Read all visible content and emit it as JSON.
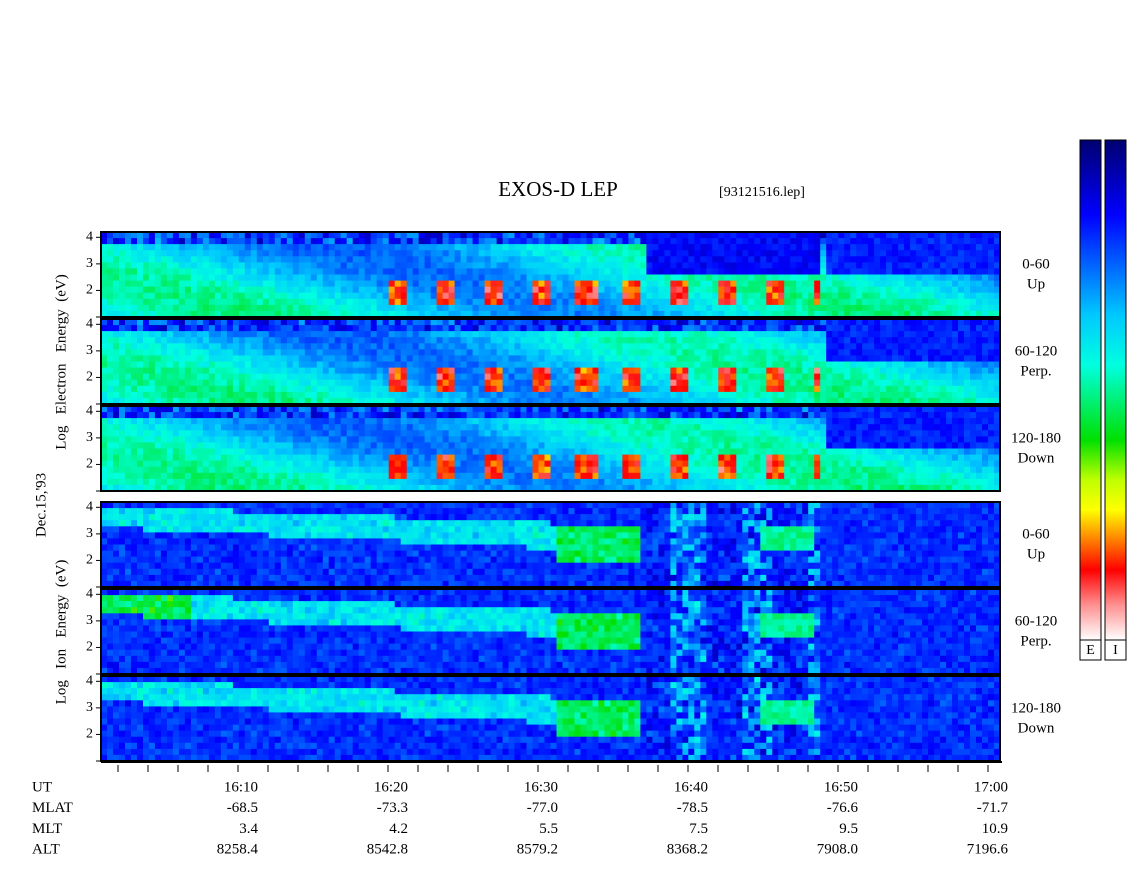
{
  "title": "EXOS-D LEP",
  "file": "[93121516.lep]",
  "date_label": "Dec.15,'93",
  "groups": [
    {
      "label": "Log   Electron   Energy  (eV)",
      "panels": [
        {
          "yticks": [
            2,
            3,
            4
          ],
          "ylim": [
            1,
            4.2
          ],
          "label": [
            "0-60",
            "Up"
          ]
        },
        {
          "yticks": [
            2,
            3,
            4
          ],
          "ylim": [
            1,
            4.2
          ],
          "label": [
            "60-120",
            "Perp."
          ]
        },
        {
          "yticks": [
            2,
            3,
            4
          ],
          "ylim": [
            1,
            4.2
          ],
          "label": [
            "120-180",
            "Down"
          ]
        }
      ]
    },
    {
      "label": "Log   Ion   Energy  (eV)",
      "panels": [
        {
          "yticks": [
            2,
            3,
            4
          ],
          "ylim": [
            1,
            4.2
          ],
          "label": [
            "0-60",
            "Up"
          ]
        },
        {
          "yticks": [
            2,
            3,
            4
          ],
          "ylim": [
            1,
            4.2
          ],
          "label": [
            "60-120",
            "Perp."
          ]
        },
        {
          "yticks": [
            2,
            3,
            4
          ],
          "ylim": [
            1,
            4.2
          ],
          "label": [
            "120-180",
            "Down"
          ]
        }
      ]
    }
  ],
  "colorbar_labels": [
    "E",
    "I"
  ],
  "ephemeris": [
    {
      "name": "UT",
      "values": [
        "16:10",
        "16:20",
        "16:30",
        "16:40",
        "16:50",
        "17:00"
      ]
    },
    {
      "name": "MLAT",
      "values": [
        "-68.5",
        "-73.3",
        "-77.0",
        "-78.5",
        "-76.6",
        "-71.7"
      ]
    },
    {
      "name": "MLT",
      "values": [
        "3.4",
        "4.2",
        "5.5",
        "7.5",
        "9.5",
        "10.9"
      ]
    },
    {
      "name": "ALT",
      "values": [
        "8258.4",
        "8542.8",
        "8579.2",
        "8368.2",
        "7908.0",
        "7196.6"
      ]
    }
  ]
}
